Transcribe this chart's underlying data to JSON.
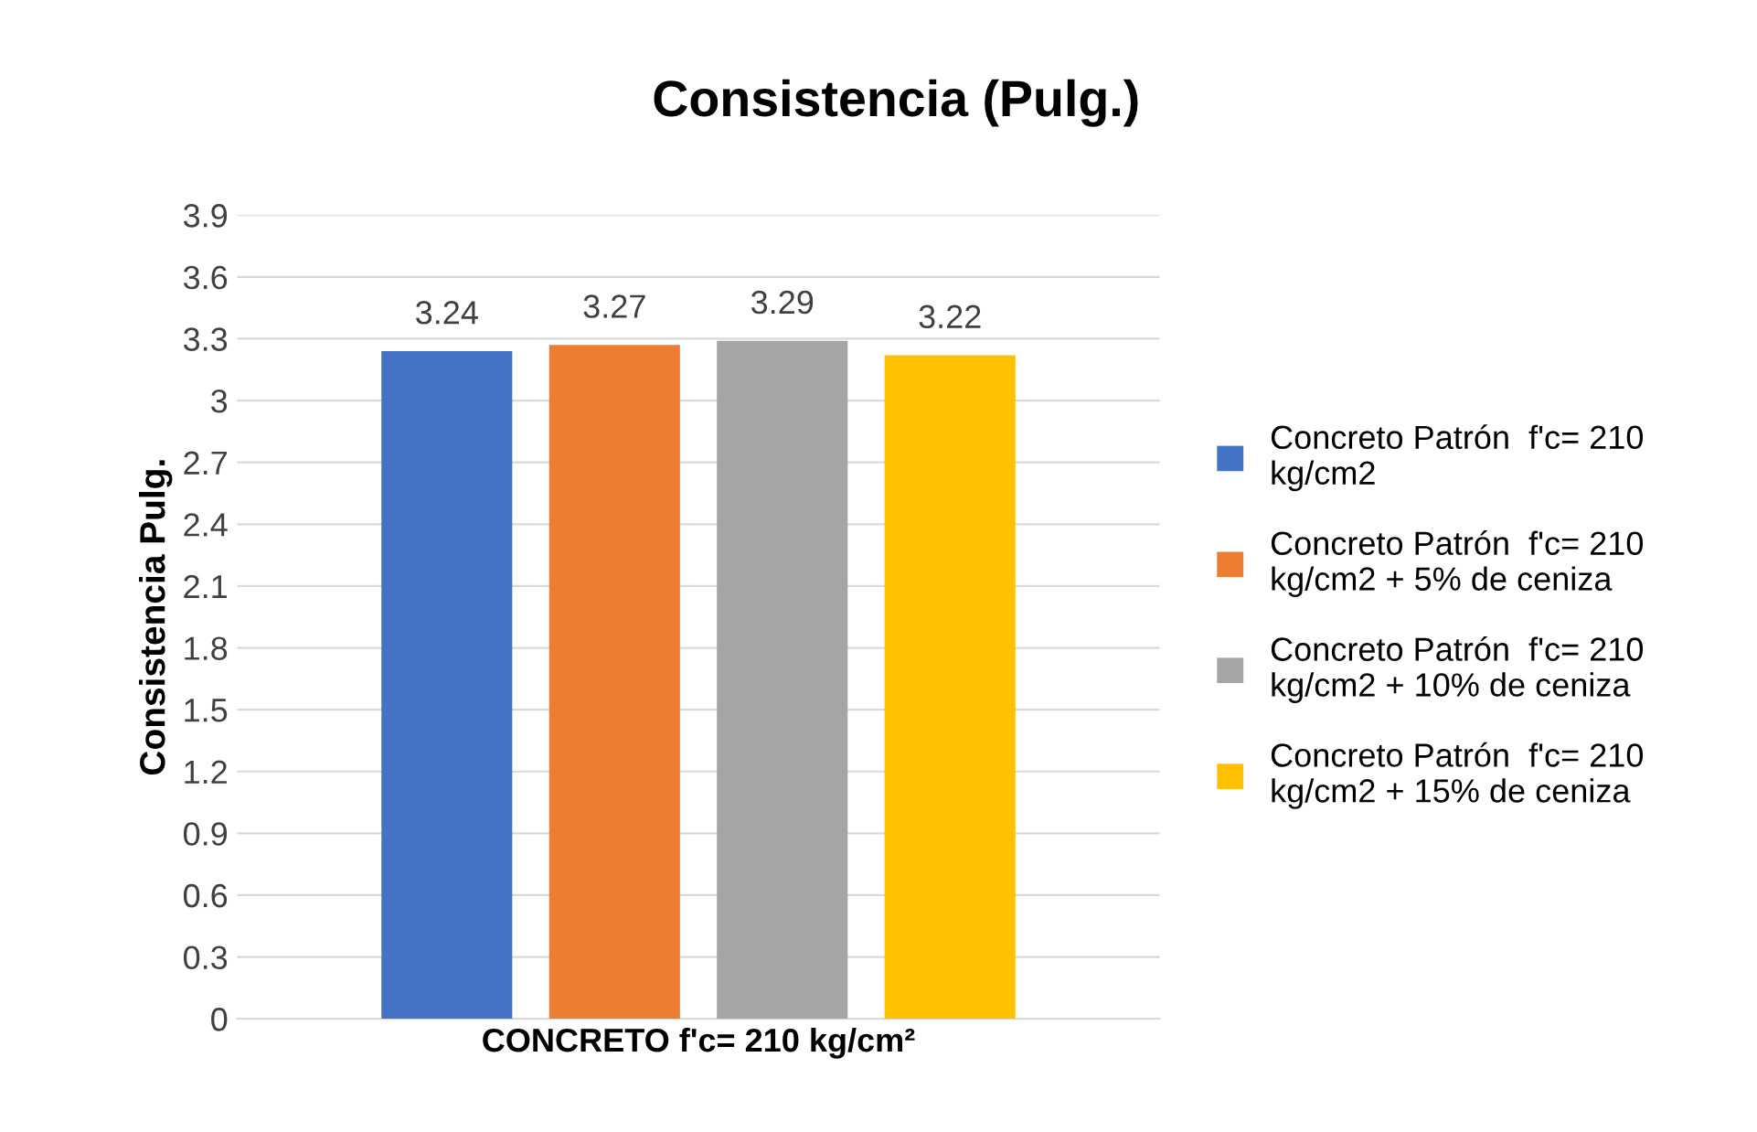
{
  "chart_data": {
    "type": "bar",
    "title": "Consistencia (Pulg.)",
    "ylabel": "Consistencia Pulg.",
    "categories": [
      "CONCRETO f'c= 210 kg/cm²"
    ],
    "series": [
      {
        "name": "Concreto Patrón  f'c= 210\nkg/cm2",
        "color": "#4472c4",
        "values": [
          3.24
        ]
      },
      {
        "name": "Concreto Patrón  f'c= 210\nkg/cm2 + 5% de ceniza",
        "color": "#ed7d31",
        "values": [
          3.27
        ]
      },
      {
        "name": "Concreto Patrón  f'c= 210\nkg/cm2 + 10% de ceniza",
        "color": "#a5a5a5",
        "values": [
          3.29
        ]
      },
      {
        "name": "Concreto Patrón  f'c= 210\nkg/cm2 + 15% de ceniza",
        "color": "#ffc000",
        "values": [
          3.22
        ]
      }
    ],
    "ylim": [
      0,
      3.9
    ],
    "yticks": [
      0,
      0.3,
      0.6,
      0.9,
      1.2,
      1.5,
      1.8,
      2.1,
      2.4,
      2.7,
      3,
      3.3,
      3.6,
      3.9
    ],
    "grid": "y",
    "legend": "right",
    "data_labels": true
  }
}
